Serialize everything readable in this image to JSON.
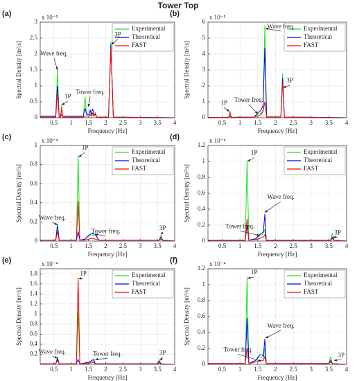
{
  "title": "Tower Top",
  "chart_data": [
    {
      "type": "line",
      "label": "(a)",
      "exponent": "x 10⁻⁵",
      "xlabel": "Frequency [Hz]",
      "ylabel": "Spectral Density [m²/s]",
      "xlim": [
        0.1,
        4
      ],
      "xticks": [
        0.5,
        1,
        1.5,
        2,
        2.5,
        3,
        3.5,
        4
      ],
      "ylim": [
        0,
        3
      ],
      "yticks": [
        0,
        0.5,
        1,
        1.5,
        2,
        2.5,
        3
      ],
      "grid": true,
      "legend": "upper right",
      "x": [
        0.1,
        0.55,
        0.6,
        0.65,
        0.69,
        0.72,
        0.75,
        1.35,
        1.4,
        1.45,
        1.52,
        1.55,
        1.58,
        1.62,
        1.66,
        1.7,
        1.74,
        2.08,
        2.15,
        2.22,
        4
      ],
      "series": [
        {
          "name": "Experimental",
          "color": "#22e022",
          "values": [
            0.05,
            0.05,
            1.5,
            0.05,
            0.05,
            0.4,
            0.05,
            0.05,
            0.65,
            0.05,
            0.05,
            0.1,
            0.05,
            0.1,
            0.05,
            0.1,
            0.02,
            0.02,
            2.4,
            0.02,
            0
          ]
        },
        {
          "name": "Theoretical",
          "color": "#0000ff",
          "values": [
            0.05,
            0.05,
            1.0,
            0.05,
            0.05,
            0.1,
            0.05,
            0.05,
            0.3,
            0.1,
            0.1,
            0.25,
            0.1,
            0.28,
            0.1,
            0.1,
            0.02,
            0.02,
            2.3,
            0.02,
            0
          ]
        },
        {
          "name": "FAST",
          "color": "#ff0000",
          "values": [
            0.02,
            0.02,
            0.8,
            0.02,
            0.02,
            0.3,
            0.02,
            0.02,
            0.05,
            0.05,
            0.05,
            0.1,
            0.05,
            0.15,
            0.05,
            0.15,
            0.02,
            0.02,
            2.2,
            0.02,
            0
          ]
        }
      ],
      "annotations": [
        "Wave freq.",
        "1P",
        "Tower freq.",
        "3P"
      ]
    },
    {
      "type": "line",
      "label": "(b)",
      "exponent": "x 10⁻⁵",
      "xlabel": "Frequency [Hz]",
      "ylabel": "Spectral Density [m²/s]",
      "xlim": [
        0.1,
        4
      ],
      "xticks": [
        0.5,
        1,
        1.5,
        2,
        2.5,
        3,
        3.5,
        4
      ],
      "ylim": [
        0,
        6
      ],
      "yticks": [
        0,
        1,
        2,
        3,
        4,
        5,
        6
      ],
      "grid": true,
      "legend": "upper right",
      "x": [
        0.1,
        0.68,
        0.72,
        0.76,
        1.4,
        1.5,
        1.6,
        1.65,
        1.7,
        1.75,
        2.15,
        2.2,
        2.25,
        4
      ],
      "series": [
        {
          "name": "Experimental",
          "color": "#22e022",
          "values": [
            0.02,
            0.02,
            0.3,
            0.02,
            0.05,
            0.2,
            0.3,
            0.5,
            5.8,
            0.05,
            0.05,
            2.8,
            0.05,
            0
          ]
        },
        {
          "name": "Theoretical",
          "color": "#0000ff",
          "values": [
            0.02,
            0.02,
            0.1,
            0.02,
            0.05,
            0.3,
            0.5,
            0.8,
            4.4,
            0.05,
            0.05,
            2.5,
            0.05,
            0
          ]
        },
        {
          "name": "FAST",
          "color": "#ff0000",
          "values": [
            0.02,
            0.02,
            0.35,
            0.02,
            0.05,
            0.1,
            0.2,
            0.4,
            1.0,
            0.05,
            0.05,
            2.2,
            0.05,
            0
          ]
        }
      ],
      "annotations": [
        "Wave freq.",
        "1P",
        "Tower freq.",
        "3P"
      ]
    },
    {
      "type": "line",
      "label": "(c)",
      "exponent": "x 10⁻⁴",
      "xlabel": "Frequency [Hz]",
      "ylabel": "Spectral Density [m²/s]",
      "xlim": [
        0.1,
        4
      ],
      "xticks": [
        0.5,
        1,
        1.5,
        2,
        2.5,
        3,
        3.5,
        4
      ],
      "ylim": [
        0,
        1
      ],
      "yticks": [
        0,
        0.2,
        0.4,
        0.6,
        0.8,
        1
      ],
      "grid": true,
      "legend": "upper right",
      "x": [
        0.1,
        0.55,
        0.6,
        0.65,
        1.15,
        1.2,
        1.25,
        1.4,
        1.5,
        1.6,
        1.7,
        1.8,
        3.55,
        3.6,
        3.65,
        4
      ],
      "series": [
        {
          "name": "Experimental",
          "color": "#22e022",
          "values": [
            0.01,
            0.01,
            0.18,
            0.01,
            0.01,
            0.9,
            0.01,
            0.02,
            0.05,
            0.06,
            0.06,
            0.01,
            0.01,
            0.06,
            0.01,
            0
          ]
        },
        {
          "name": "Theoretical",
          "color": "#0000ff",
          "values": [
            0.01,
            0.01,
            0.16,
            0.01,
            0.01,
            0.1,
            0.01,
            0.02,
            0.06,
            0.08,
            0.07,
            0.01,
            0.01,
            0.04,
            0.01,
            0
          ]
        },
        {
          "name": "FAST",
          "color": "#ff0000",
          "values": [
            0.01,
            0.01,
            0.1,
            0.01,
            0.01,
            0.42,
            0.01,
            0.01,
            0.02,
            0.03,
            0.02,
            0.01,
            0.01,
            0.02,
            0.01,
            0
          ]
        }
      ],
      "annotations": [
        "Wave freq.",
        "1P",
        "Tower freq.",
        "3P"
      ]
    },
    {
      "type": "line",
      "label": "(d)",
      "exponent": "x 10⁻⁴",
      "xlabel": "Frequency [Hz]",
      "ylabel": "Spectral Density [m²/s]",
      "xlim": [
        0.1,
        4
      ],
      "xticks": [
        0.5,
        1,
        1.5,
        2,
        2.5,
        3,
        3.5,
        4
      ],
      "ylim": [
        0,
        1.2
      ],
      "yticks": [
        0,
        0.2,
        0.4,
        0.6,
        0.8,
        1,
        1.2
      ],
      "grid": true,
      "legend": "upper right",
      "x": [
        0.1,
        1.15,
        1.2,
        1.25,
        1.45,
        1.55,
        1.62,
        1.66,
        1.7,
        1.74,
        3.55,
        3.6,
        3.65,
        4
      ],
      "series": [
        {
          "name": "Experimental",
          "color": "#22e022",
          "values": [
            0.01,
            0.01,
            1.02,
            0.01,
            0.03,
            0.06,
            0.08,
            0.1,
            0.15,
            0.01,
            0.01,
            0.1,
            0.01,
            0
          ]
        },
        {
          "name": "Theoretical",
          "color": "#0000ff",
          "values": [
            0.01,
            0.01,
            0.2,
            0.01,
            0.03,
            0.08,
            0.1,
            0.12,
            0.34,
            0.01,
            0.01,
            0.05,
            0.01,
            0
          ]
        },
        {
          "name": "FAST",
          "color": "#ff0000",
          "values": [
            0.01,
            0.01,
            0.28,
            0.01,
            0.02,
            0.03,
            0.05,
            0.05,
            0.08,
            0.01,
            0.01,
            0.03,
            0.01,
            0
          ]
        }
      ],
      "annotations": [
        "1P",
        "Wave freq.",
        "Tower freq.",
        "3P"
      ]
    },
    {
      "type": "line",
      "label": "(e)",
      "exponent": "x 10⁻⁴",
      "xlabel": "Frequency [Hz]",
      "ylabel": "Spectral Density [m²/s]",
      "xlim": [
        0.1,
        4
      ],
      "xticks": [
        0.5,
        1,
        1.5,
        2,
        2.5,
        3,
        3.5,
        4
      ],
      "ylim": [
        0,
        1.9
      ],
      "yticks": [
        0.2,
        0.4,
        0.6,
        0.8,
        1,
        1.2,
        1.4,
        1.6,
        1.8
      ],
      "grid": true,
      "legend": "upper right",
      "x": [
        0.1,
        0.55,
        0.6,
        0.65,
        1.15,
        1.2,
        1.25,
        1.5,
        1.6,
        1.65,
        1.7,
        3.5,
        3.55,
        3.6,
        4
      ],
      "series": [
        {
          "name": "Experimental",
          "color": "#22e022",
          "values": [
            0.01,
            0.01,
            0.15,
            0.01,
            0.01,
            1.05,
            0.01,
            0.03,
            0.05,
            0.08,
            0.01,
            0.01,
            0.1,
            0.01,
            0
          ]
        },
        {
          "name": "Theoretical",
          "color": "#0000ff",
          "values": [
            0.01,
            0.01,
            0.12,
            0.01,
            0.01,
            0.1,
            0.01,
            0.04,
            0.08,
            0.1,
            0.01,
            0.01,
            0.06,
            0.01,
            0
          ]
        },
        {
          "name": "FAST",
          "color": "#ff0000",
          "values": [
            0.01,
            0.01,
            0.08,
            0.01,
            0.01,
            1.72,
            0.01,
            0.02,
            0.03,
            0.04,
            0.01,
            0.01,
            0.03,
            0.01,
            0
          ]
        }
      ],
      "annotations": [
        "1P",
        "Wave freq.",
        "Tower freq.",
        "3P"
      ]
    },
    {
      "type": "line",
      "label": "(f)",
      "exponent": "x 10⁻⁴",
      "xlabel": "Frequency [Hz]",
      "ylabel": "Spectral Density [m²/s]",
      "xlim": [
        0.1,
        4
      ],
      "xticks": [
        0.5,
        1,
        1.5,
        2,
        2.5,
        3,
        3.5,
        4
      ],
      "ylim": [
        0,
        1.2
      ],
      "yticks": [
        0,
        0.2,
        0.4,
        0.6,
        0.8,
        1,
        1.2
      ],
      "grid": true,
      "legend": "upper right",
      "x": [
        0.1,
        1.15,
        1.2,
        1.25,
        1.45,
        1.55,
        1.62,
        1.66,
        1.7,
        1.74,
        3.5,
        3.55,
        3.6,
        4
      ],
      "series": [
        {
          "name": "Experimental",
          "color": "#22e022",
          "values": [
            0.01,
            0.01,
            1.1,
            0.01,
            0.05,
            0.1,
            0.08,
            0.08,
            0.2,
            0.01,
            0.01,
            0.1,
            0.01,
            0
          ]
        },
        {
          "name": "Theoretical",
          "color": "#0000ff",
          "values": [
            0.01,
            0.01,
            0.58,
            0.01,
            0.05,
            0.12,
            0.12,
            0.1,
            0.32,
            0.01,
            0.01,
            0.05,
            0.01,
            0
          ]
        },
        {
          "name": "FAST",
          "color": "#ff0000",
          "values": [
            0.01,
            0.01,
            0.2,
            0.01,
            0.03,
            0.05,
            0.05,
            0.05,
            0.1,
            0.01,
            0.01,
            0.03,
            0.01,
            0
          ]
        }
      ],
      "annotations": [
        "1P",
        "Wave freq.",
        "Tower freq.",
        "3P"
      ]
    }
  ]
}
